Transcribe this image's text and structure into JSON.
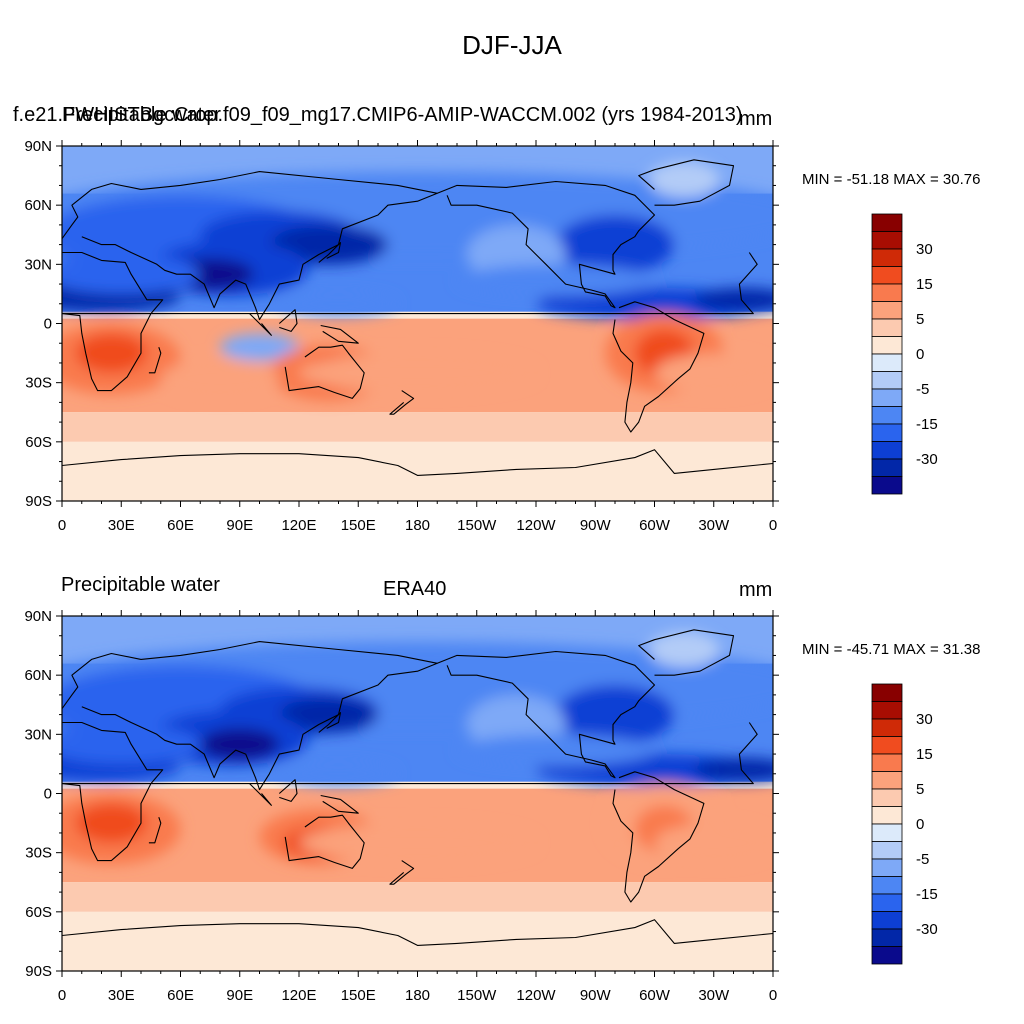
{
  "main_title": "DJF-JJA",
  "colors": {
    "levels": [
      "#0a0a8c",
      "#0227a8",
      "#0d3fd4",
      "#2a64ee",
      "#4d86f3",
      "#7ea9f7",
      "#b3ccf7",
      "#dceafa",
      "#fde8d6",
      "#fccab0",
      "#fba27c",
      "#f97a4e",
      "#f04c1f",
      "#cf2a07",
      "#a80d02",
      "#880000"
    ],
    "ocean_pos": "#fbb390",
    "land_line": "#000000"
  },
  "panels": [
    {
      "left_title": "Precipitable water",
      "case_title": "f.e21.FWHISTBgcCrop.f09_f09_mg17.CMIP6-AMIP-WACCM.002 (yrs 1984-2013)",
      "center_title": "",
      "units": "mm",
      "min_max": "MIN = -51.18 MAX =  30.76"
    },
    {
      "left_title": "Precipitable water",
      "case_title": "",
      "center_title": "ERA40",
      "units": "mm",
      "min_max": "MIN = -45.71 MAX =  31.38"
    }
  ],
  "lat_labels": [
    "90N",
    "60N",
    "30N",
    "0",
    "30S",
    "60S",
    "90S"
  ],
  "lon_labels": [
    "0",
    "30E",
    "60E",
    "90E",
    "120E",
    "150E",
    "180",
    "150W",
    "120W",
    "90W",
    "60W",
    "30W",
    "0"
  ],
  "colorbar_labels": [
    "30",
    "15",
    "5",
    "0",
    "-5",
    "-15",
    "-30"
  ]
}
